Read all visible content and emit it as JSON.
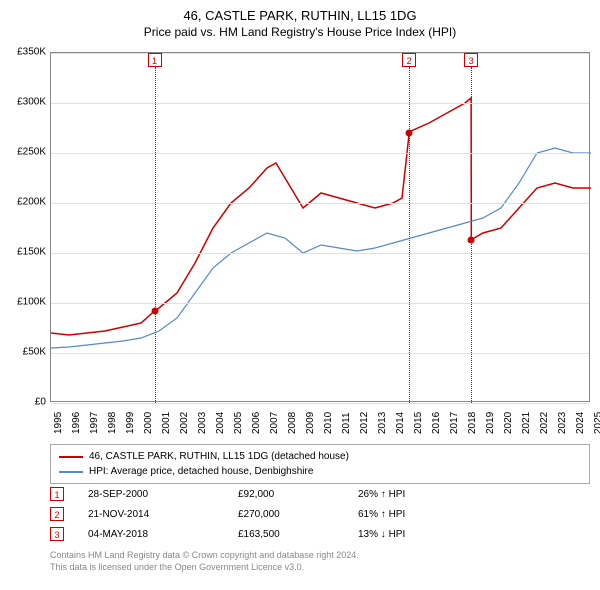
{
  "title": "46, CASTLE PARK, RUTHIN, LL15 1DG",
  "subtitle": "Price paid vs. HM Land Registry's House Price Index (HPI)",
  "chart": {
    "type": "line",
    "background_color": "#ffffff",
    "grid_color": "#e0e0e0",
    "border_color": "#888888",
    "x_start_year": 1995,
    "x_end_year": 2025,
    "x_tick_labels": [
      "1995",
      "1996",
      "1997",
      "1998",
      "1999",
      "2000",
      "2001",
      "2002",
      "2003",
      "2004",
      "2005",
      "2006",
      "2007",
      "2008",
      "2009",
      "2010",
      "2011",
      "2012",
      "2013",
      "2014",
      "2015",
      "2016",
      "2017",
      "2018",
      "2019",
      "2020",
      "2021",
      "2022",
      "2023",
      "2024",
      "2025"
    ],
    "ylim": [
      0,
      350000
    ],
    "ytick_step": 50000,
    "y_tick_labels": [
      "£0",
      "£50K",
      "£100K",
      "£150K",
      "£200K",
      "£250K",
      "£300K",
      "£350K"
    ],
    "series": [
      {
        "name": "46, CASTLE PARK, RUTHIN, LL15 1DG (detached house)",
        "color": "#cc0000",
        "line_width": 1.5,
        "points": [
          [
            1995,
            70000
          ],
          [
            1996,
            68000
          ],
          [
            1997,
            70000
          ],
          [
            1998,
            72000
          ],
          [
            1999,
            76000
          ],
          [
            2000,
            80000
          ],
          [
            2000.75,
            92000
          ],
          [
            2001,
            95000
          ],
          [
            2002,
            110000
          ],
          [
            2003,
            140000
          ],
          [
            2004,
            175000
          ],
          [
            2005,
            200000
          ],
          [
            2006,
            215000
          ],
          [
            2007,
            235000
          ],
          [
            2007.5,
            240000
          ],
          [
            2008,
            225000
          ],
          [
            2009,
            195000
          ],
          [
            2010,
            210000
          ],
          [
            2011,
            205000
          ],
          [
            2012,
            200000
          ],
          [
            2013,
            195000
          ],
          [
            2014,
            200000
          ],
          [
            2014.5,
            205000
          ],
          [
            2014.9,
            270000
          ],
          [
            2015,
            272000
          ],
          [
            2016,
            280000
          ],
          [
            2017,
            290000
          ],
          [
            2018,
            300000
          ],
          [
            2018.34,
            305000
          ],
          [
            2018.35,
            163500
          ],
          [
            2019,
            170000
          ],
          [
            2020,
            175000
          ],
          [
            2021,
            195000
          ],
          [
            2022,
            215000
          ],
          [
            2023,
            220000
          ],
          [
            2024,
            215000
          ],
          [
            2025,
            215000
          ]
        ]
      },
      {
        "name": "HPI: Average price, detached house, Denbighshire",
        "color": "#5588cc",
        "line_width": 1.2,
        "points": [
          [
            1995,
            55000
          ],
          [
            1996,
            56000
          ],
          [
            1997,
            58000
          ],
          [
            1998,
            60000
          ],
          [
            1999,
            62000
          ],
          [
            2000,
            65000
          ],
          [
            2001,
            72000
          ],
          [
            2002,
            85000
          ],
          [
            2003,
            110000
          ],
          [
            2004,
            135000
          ],
          [
            2005,
            150000
          ],
          [
            2006,
            160000
          ],
          [
            2007,
            170000
          ],
          [
            2008,
            165000
          ],
          [
            2009,
            150000
          ],
          [
            2010,
            158000
          ],
          [
            2011,
            155000
          ],
          [
            2012,
            152000
          ],
          [
            2013,
            155000
          ],
          [
            2014,
            160000
          ],
          [
            2015,
            165000
          ],
          [
            2016,
            170000
          ],
          [
            2017,
            175000
          ],
          [
            2018,
            180000
          ],
          [
            2019,
            185000
          ],
          [
            2020,
            195000
          ],
          [
            2021,
            220000
          ],
          [
            2022,
            250000
          ],
          [
            2023,
            255000
          ],
          [
            2024,
            250000
          ],
          [
            2025,
            250000
          ]
        ]
      }
    ],
    "event_markers": [
      {
        "id": "1",
        "year": 2000.75,
        "value": 92000
      },
      {
        "id": "2",
        "year": 2014.9,
        "value": 270000
      },
      {
        "id": "3",
        "year": 2018.34,
        "value": 163500
      }
    ]
  },
  "legend": [
    {
      "color": "#cc0000",
      "label": "46, CASTLE PARK, RUTHIN, LL15 1DG (detached house)"
    },
    {
      "color": "#5588cc",
      "label": "HPI: Average price, detached house, Denbighshire"
    }
  ],
  "events_table": [
    {
      "id": "1",
      "date": "28-SEP-2000",
      "price": "£92,000",
      "pct": "26% ↑ HPI"
    },
    {
      "id": "2",
      "date": "21-NOV-2014",
      "price": "£270,000",
      "pct": "61% ↑ HPI"
    },
    {
      "id": "3",
      "date": "04-MAY-2018",
      "price": "£163,500",
      "pct": "13% ↓ HPI"
    }
  ],
  "footer": {
    "line1": "Contains HM Land Registry data © Crown copyright and database right 2024.",
    "line2": "This data is licensed under the Open Government Licence v3.0."
  }
}
